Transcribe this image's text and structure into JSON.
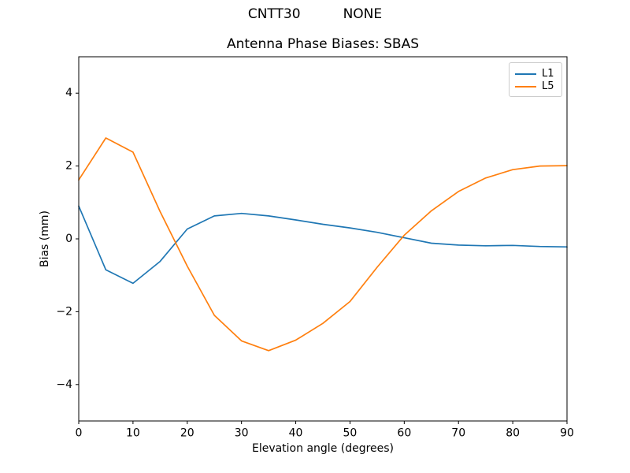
{
  "figure": {
    "suptitle": "CNTT30          NONE",
    "background": "#ffffff"
  },
  "chart_data": {
    "type": "line",
    "title": "Antenna Phase Biases: SBAS",
    "xlabel": "Elevation angle (degrees)",
    "ylabel": "Bias (mm)",
    "xlim": [
      0,
      90
    ],
    "ylim": [
      -5,
      5
    ],
    "xticks": [
      0,
      10,
      20,
      30,
      40,
      50,
      60,
      70,
      80,
      90
    ],
    "yticks": [
      -4,
      -2,
      0,
      2,
      4
    ],
    "grid": false,
    "legend_position": "upper right",
    "axis_color": "#000000",
    "x": [
      0,
      5,
      10,
      15,
      20,
      25,
      30,
      35,
      40,
      45,
      50,
      55,
      60,
      65,
      70,
      75,
      80,
      85,
      90
    ],
    "series": [
      {
        "name": "L1",
        "color": "#1f77b4",
        "values": [
          0.9,
          -0.85,
          -1.22,
          -0.62,
          0.27,
          0.63,
          0.7,
          0.63,
          0.52,
          0.4,
          0.3,
          0.18,
          0.03,
          -0.12,
          -0.17,
          -0.19,
          -0.18,
          -0.21,
          -0.22
        ]
      },
      {
        "name": "L5",
        "color": "#ff7f0e",
        "values": [
          1.62,
          2.77,
          2.38,
          0.75,
          -0.75,
          -2.1,
          -2.8,
          -3.07,
          -2.78,
          -2.32,
          -1.72,
          -0.78,
          0.1,
          0.77,
          1.3,
          1.67,
          1.9,
          2.0,
          2.01
        ]
      }
    ]
  }
}
